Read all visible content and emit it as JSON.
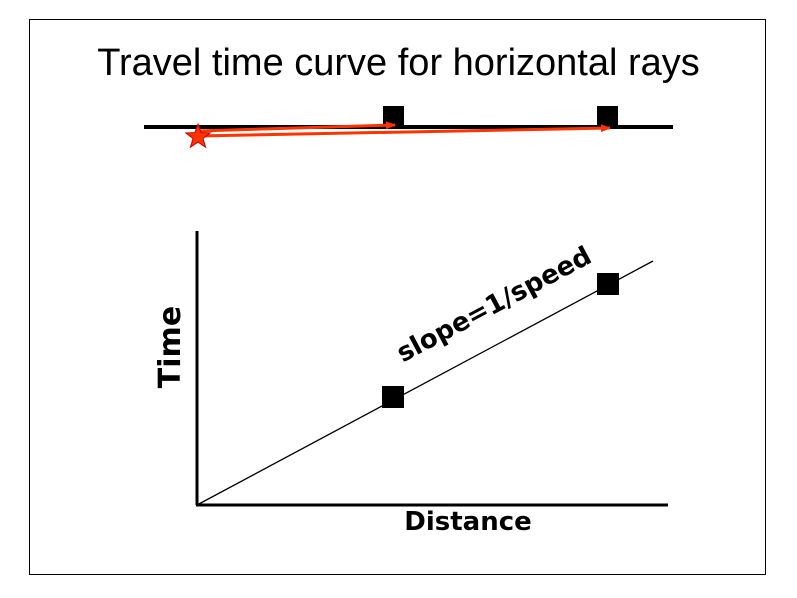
{
  "slide": {
    "title": "Travel time curve for horizontal rays"
  },
  "ray_section": {
    "source_marker": "star-icon",
    "receiver_marker": "square-icon",
    "ray_color": "#ff3300"
  },
  "plot": {
    "ylabel": "Time",
    "xlabel": "Distance",
    "line_label": "slope=1/speed",
    "point_marker": "square-icon"
  }
}
